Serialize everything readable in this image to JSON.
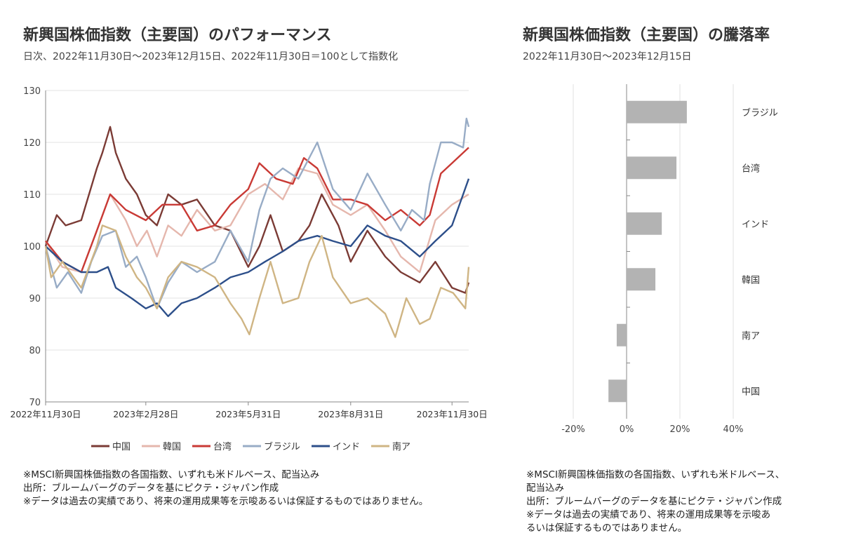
{
  "left": {
    "title": "新興国株価指数（主要国）のパフォーマンス",
    "subtitle": "日次、2022年11月30日～2023年12月15日、2022年11月30日＝100として指数化",
    "notes": [
      "※MSCI新興国株価指数の各国指数、いずれも米ドルベース、配当込み",
      "出所：ブルームバーグのデータを基にピクテ・ジャパン作成",
      "※データは過去の実績であり、将来の運用成果等を示唆あるいは保証するものではありません。"
    ]
  },
  "right": {
    "title": "新興国株価指数（主要国）の騰落率",
    "subtitle": "2022年11月30日～2023年12月15日",
    "notes": [
      "※MSCI新興国株価指数の各国指数、いずれも米ドルベース、",
      "配当込み",
      "出所：ブルームバーグのデータを基にピクテ・ジャパン作成",
      "※データは過去の実績であり、将来の運用成果等を示唆あ",
      "るいは保証するものではありません。"
    ]
  },
  "chart_data": [
    {
      "type": "line",
      "ylim": [
        70,
        130
      ],
      "yticks": [
        70,
        80,
        90,
        100,
        110,
        120,
        130
      ],
      "xlim": [
        "2022-11-30",
        "2023-12-15"
      ],
      "xticks": [
        {
          "date": "2022-11-30",
          "label": "2022年11月30日"
        },
        {
          "date": "2023-02-28",
          "label": "2023年2月28日"
        },
        {
          "date": "2023-05-31",
          "label": "2023年5月31日"
        },
        {
          "date": "2023-08-31",
          "label": "2023年8月31日"
        },
        {
          "date": "2023-11-30",
          "label": "2023年11月30日"
        }
      ],
      "grid": true,
      "legend": "bottom",
      "series": [
        {
          "name": "中国",
          "color": "#7b3b35",
          "points": [
            [
              "2022-11-30",
              100
            ],
            [
              "2022-12-10",
              106
            ],
            [
              "2022-12-18",
              104
            ],
            [
              "2023-01-01",
              105
            ],
            [
              "2023-01-15",
              115
            ],
            [
              "2023-01-20",
              118
            ],
            [
              "2023-01-27",
              123
            ],
            [
              "2023-02-01",
              118
            ],
            [
              "2023-02-10",
              113
            ],
            [
              "2023-02-20",
              110
            ],
            [
              "2023-02-28",
              106
            ],
            [
              "2023-03-10",
              104
            ],
            [
              "2023-03-20",
              110
            ],
            [
              "2023-04-01",
              108
            ],
            [
              "2023-04-15",
              109
            ],
            [
              "2023-05-01",
              104
            ],
            [
              "2023-05-15",
              103
            ],
            [
              "2023-05-31",
              96
            ],
            [
              "2023-06-10",
              100
            ],
            [
              "2023-06-20",
              106
            ],
            [
              "2023-07-01",
              99
            ],
            [
              "2023-07-15",
              101
            ],
            [
              "2023-07-25",
              104
            ],
            [
              "2023-08-05",
              110
            ],
            [
              "2023-08-20",
              104
            ],
            [
              "2023-08-31",
              97
            ],
            [
              "2023-09-15",
              103
            ],
            [
              "2023-10-01",
              98
            ],
            [
              "2023-10-15",
              95
            ],
            [
              "2023-11-01",
              93
            ],
            [
              "2023-11-15",
              97
            ],
            [
              "2023-11-30",
              92
            ],
            [
              "2023-12-12",
              91
            ],
            [
              "2023-12-15",
              93
            ]
          ]
        },
        {
          "name": "韓国",
          "color": "#e5b7ad",
          "points": [
            [
              "2022-11-30",
              101
            ],
            [
              "2022-12-15",
              96
            ],
            [
              "2023-01-01",
              95
            ],
            [
              "2023-01-15",
              103
            ],
            [
              "2023-01-27",
              110
            ],
            [
              "2023-02-10",
              105
            ],
            [
              "2023-02-20",
              100
            ],
            [
              "2023-03-01",
              103
            ],
            [
              "2023-03-10",
              98
            ],
            [
              "2023-03-20",
              104
            ],
            [
              "2023-04-01",
              102
            ],
            [
              "2023-04-15",
              107
            ],
            [
              "2023-05-01",
              103
            ],
            [
              "2023-05-15",
              104
            ],
            [
              "2023-05-31",
              110
            ],
            [
              "2023-06-15",
              112
            ],
            [
              "2023-07-01",
              109
            ],
            [
              "2023-07-15",
              115
            ],
            [
              "2023-08-01",
              114
            ],
            [
              "2023-08-15",
              108
            ],
            [
              "2023-08-31",
              106
            ],
            [
              "2023-09-15",
              108
            ],
            [
              "2023-10-01",
              103
            ],
            [
              "2023-10-15",
              98
            ],
            [
              "2023-11-01",
              95
            ],
            [
              "2023-11-15",
              105
            ],
            [
              "2023-11-30",
              108
            ],
            [
              "2023-12-15",
              110
            ]
          ]
        },
        {
          "name": "台湾",
          "color": "#c93a35",
          "points": [
            [
              "2022-11-30",
              101
            ],
            [
              "2022-12-15",
              97
            ],
            [
              "2023-01-01",
              95
            ],
            [
              "2023-01-15",
              103
            ],
            [
              "2023-01-27",
              110
            ],
            [
              "2023-02-10",
              107
            ],
            [
              "2023-02-28",
              105
            ],
            [
              "2023-03-15",
              108
            ],
            [
              "2023-04-01",
              108
            ],
            [
              "2023-04-15",
              103
            ],
            [
              "2023-05-01",
              104
            ],
            [
              "2023-05-15",
              108
            ],
            [
              "2023-05-31",
              111
            ],
            [
              "2023-06-10",
              116
            ],
            [
              "2023-06-25",
              113
            ],
            [
              "2023-07-10",
              112
            ],
            [
              "2023-07-20",
              117
            ],
            [
              "2023-08-01",
              115
            ],
            [
              "2023-08-15",
              109
            ],
            [
              "2023-08-31",
              109
            ],
            [
              "2023-09-15",
              108
            ],
            [
              "2023-10-01",
              105
            ],
            [
              "2023-10-15",
              107
            ],
            [
              "2023-11-01",
              104
            ],
            [
              "2023-11-10",
              106
            ],
            [
              "2023-11-20",
              114
            ],
            [
              "2023-11-30",
              116
            ],
            [
              "2023-12-15",
              119
            ]
          ]
        },
        {
          "name": "ブラジル",
          "color": "#98acc6",
          "points": [
            [
              "2022-11-30",
              100
            ],
            [
              "2022-12-10",
              92
            ],
            [
              "2022-12-20",
              95
            ],
            [
              "2023-01-01",
              91
            ],
            [
              "2023-01-10",
              97
            ],
            [
              "2023-01-20",
              102
            ],
            [
              "2023-02-01",
              103
            ],
            [
              "2023-02-10",
              96
            ],
            [
              "2023-02-20",
              98
            ],
            [
              "2023-02-28",
              94
            ],
            [
              "2023-03-10",
              88
            ],
            [
              "2023-03-20",
              93
            ],
            [
              "2023-04-01",
              97
            ],
            [
              "2023-04-15",
              95
            ],
            [
              "2023-05-01",
              97
            ],
            [
              "2023-05-15",
              103
            ],
            [
              "2023-05-31",
              97
            ],
            [
              "2023-06-10",
              107
            ],
            [
              "2023-06-20",
              113
            ],
            [
              "2023-07-01",
              115
            ],
            [
              "2023-07-15",
              113
            ],
            [
              "2023-08-01",
              120
            ],
            [
              "2023-08-15",
              111
            ],
            [
              "2023-08-31",
              107
            ],
            [
              "2023-09-15",
              114
            ],
            [
              "2023-10-01",
              108
            ],
            [
              "2023-10-15",
              103
            ],
            [
              "2023-10-25",
              107
            ],
            [
              "2023-11-05",
              105
            ],
            [
              "2023-11-10",
              112
            ],
            [
              "2023-11-20",
              120
            ],
            [
              "2023-11-30",
              120
            ],
            [
              "2023-12-10",
              119
            ],
            [
              "2023-12-13",
              124.6
            ],
            [
              "2023-12-15",
              123
            ]
          ]
        },
        {
          "name": "インド",
          "color": "#2d4f8a",
          "points": [
            [
              "2022-11-30",
              100
            ],
            [
              "2022-12-15",
              97
            ],
            [
              "2023-01-01",
              95
            ],
            [
              "2023-01-15",
              95
            ],
            [
              "2023-01-25",
              96
            ],
            [
              "2023-02-01",
              92
            ],
            [
              "2023-02-15",
              90
            ],
            [
              "2023-02-28",
              88
            ],
            [
              "2023-03-10",
              89
            ],
            [
              "2023-03-20",
              86.5
            ],
            [
              "2023-04-01",
              89
            ],
            [
              "2023-04-15",
              90
            ],
            [
              "2023-05-01",
              92
            ],
            [
              "2023-05-15",
              94
            ],
            [
              "2023-05-31",
              95
            ],
            [
              "2023-06-15",
              97
            ],
            [
              "2023-07-01",
              99
            ],
            [
              "2023-07-15",
              101
            ],
            [
              "2023-08-01",
              102
            ],
            [
              "2023-08-15",
              101
            ],
            [
              "2023-08-31",
              100
            ],
            [
              "2023-09-15",
              104
            ],
            [
              "2023-10-01",
              102
            ],
            [
              "2023-10-15",
              101
            ],
            [
              "2023-11-01",
              98
            ],
            [
              "2023-11-15",
              101
            ],
            [
              "2023-11-30",
              104
            ],
            [
              "2023-12-10",
              110
            ],
            [
              "2023-12-15",
              113
            ]
          ]
        },
        {
          "name": "南ア",
          "color": "#cfb584",
          "points": [
            [
              "2022-11-30",
              100
            ],
            [
              "2022-12-05",
              94
            ],
            [
              "2022-12-15",
              97
            ],
            [
              "2023-01-01",
              92
            ],
            [
              "2023-01-15",
              100
            ],
            [
              "2023-01-20",
              104
            ],
            [
              "2023-02-01",
              103
            ],
            [
              "2023-02-10",
              98
            ],
            [
              "2023-02-20",
              94
            ],
            [
              "2023-02-28",
              92
            ],
            [
              "2023-03-10",
              88
            ],
            [
              "2023-03-20",
              94
            ],
            [
              "2023-04-01",
              97
            ],
            [
              "2023-04-15",
              96
            ],
            [
              "2023-05-01",
              94
            ],
            [
              "2023-05-15",
              89
            ],
            [
              "2023-05-25",
              86
            ],
            [
              "2023-06-01",
              83
            ],
            [
              "2023-06-10",
              90
            ],
            [
              "2023-06-20",
              97
            ],
            [
              "2023-07-01",
              89
            ],
            [
              "2023-07-15",
              90
            ],
            [
              "2023-07-25",
              97
            ],
            [
              "2023-08-05",
              102
            ],
            [
              "2023-08-15",
              94
            ],
            [
              "2023-08-31",
              89
            ],
            [
              "2023-09-15",
              90
            ],
            [
              "2023-10-01",
              87
            ],
            [
              "2023-10-10",
              82.5
            ],
            [
              "2023-10-20",
              90
            ],
            [
              "2023-11-01",
              85
            ],
            [
              "2023-11-10",
              86
            ],
            [
              "2023-11-20",
              92
            ],
            [
              "2023-12-01",
              91
            ],
            [
              "2023-12-12",
              88
            ],
            [
              "2023-12-15",
              96
            ]
          ]
        }
      ]
    },
    {
      "type": "bar",
      "orientation": "horizontal",
      "xlim": [
        -20,
        40
      ],
      "xticks": [
        "-20%",
        "0%",
        "20%",
        "40%"
      ],
      "grid": true,
      "bar_color": "#b3b3b3",
      "categories": [
        "ブラジル",
        "台湾",
        "インド",
        "韓国",
        "南ア",
        "中国"
      ],
      "values": [
        22.6,
        18.7,
        13.2,
        10.8,
        -3.7,
        -6.8
      ]
    }
  ]
}
